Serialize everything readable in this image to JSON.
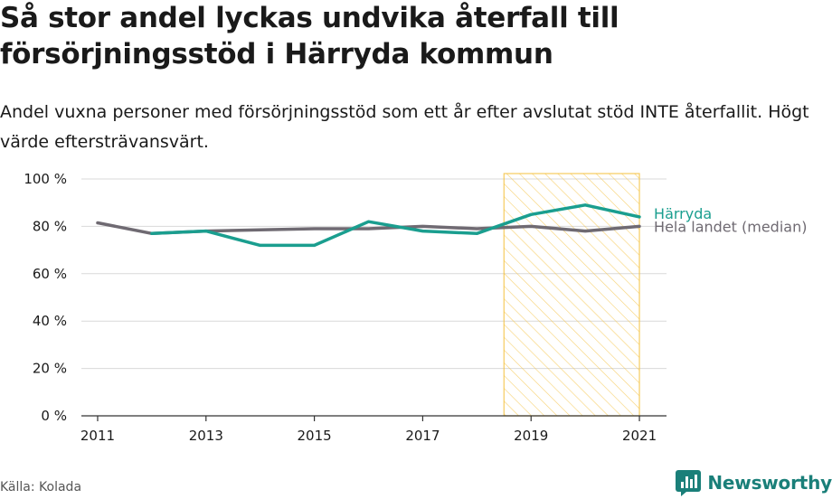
{
  "header": {
    "title": "Så stor andel lyckas undvika återfall till försörjningsstöd i Härryda kommun",
    "subtitle": "Andel vuxna personer med försörjningsstöd som ett år efter avslutat stöd INTE återfallit. Högt värde eftersträvansvärt."
  },
  "footer": {
    "source": "Källa: Kolada",
    "brand": "Newsworthy",
    "brand_color": "#1a7f79"
  },
  "chart_data": {
    "type": "line",
    "title": "Så stor andel lyckas undvika återfall till försörjningsstöd i Härryda kommun",
    "subtitle": "Andel vuxna personer med försörjningsstöd som ett år efter avslutat stöd INTE återfallit. Högt värde eftersträvansvärt.",
    "xlabel": "",
    "ylabel": "",
    "x": [
      2011,
      2012,
      2013,
      2014,
      2015,
      2016,
      2017,
      2018,
      2019,
      2020,
      2021
    ],
    "x_ticks": [
      "2011",
      "2013",
      "2015",
      "2017",
      "2019",
      "2021"
    ],
    "xlim": [
      2010.7,
      2021.5
    ],
    "ylim": [
      0,
      100
    ],
    "y_ticks": [
      "0 %",
      "20 %",
      "40 %",
      "60 %",
      "80 %",
      "100 %"
    ],
    "y_tick_values": [
      0,
      20,
      40,
      60,
      80,
      100
    ],
    "grid": "horizontal",
    "highlight_range": [
      2018.5,
      2021
    ],
    "highlight_color": "#f5c242",
    "series": [
      {
        "name": "Härryda",
        "color": "#1a9e8f",
        "values": [
          null,
          77,
          78,
          72,
          72,
          82,
          78,
          77,
          85,
          89,
          84
        ]
      },
      {
        "name": "Hela landet (median)",
        "color": "#6f6a72",
        "values": [
          81.5,
          77,
          78,
          78.5,
          79,
          79,
          80,
          79,
          80,
          78,
          80
        ]
      }
    ]
  }
}
